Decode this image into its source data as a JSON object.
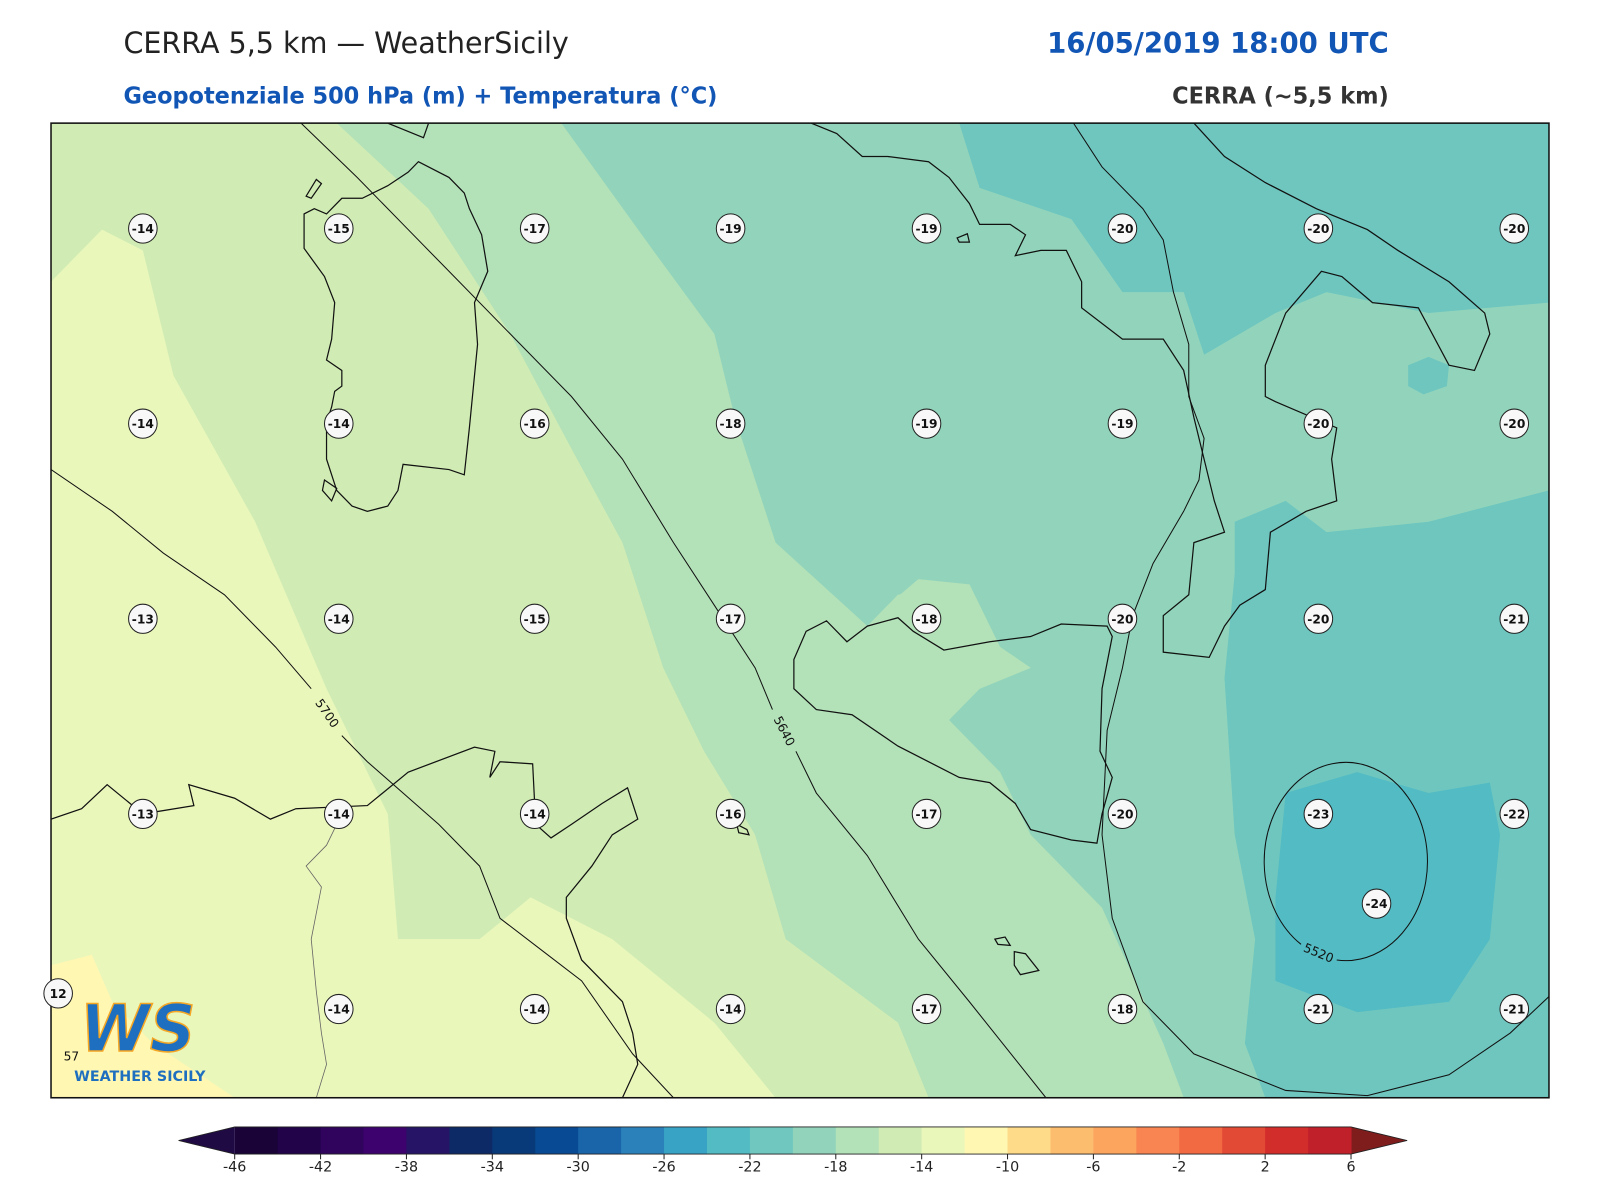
{
  "header": {
    "title": "CERRA 5,5 km — WeatherSicily",
    "datetime": "16/05/2019 18:00 UTC",
    "subtitle": "Geopotenziale 500 hPa (m) + Temperatura (°C)",
    "model": "CERRA (~5,5 km)"
  },
  "map": {
    "temperature_rows": [
      [
        -14,
        -15,
        -17,
        -19,
        -19,
        -20,
        -20,
        -20
      ],
      [
        -14,
        -14,
        -16,
        -18,
        -19,
        -19,
        -20,
        -20
      ],
      [
        -13,
        -14,
        -15,
        -17,
        -18,
        -20,
        -20,
        -21
      ],
      [
        -13,
        -14,
        -14,
        -16,
        -17,
        -20,
        -23,
        -22
      ],
      [
        null,
        -14,
        -14,
        -14,
        -17,
        -18,
        -21,
        -21
      ]
    ],
    "extra_points": [
      -24,
      12
    ],
    "contour_labels": [
      5700,
      5640,
      5520,
      57
    ]
  },
  "logo": {
    "mark": "WS",
    "name": "WEATHER SICILY"
  },
  "colorbar": {
    "ticks": [
      -46,
      -42,
      -38,
      -34,
      -30,
      -26,
      -22,
      -18,
      -14,
      -10,
      -6,
      -2,
      2,
      6
    ],
    "colors": [
      "#1a0336",
      "#22034a",
      "#30035c",
      "#3e026e",
      "#261466",
      "#0e2a66",
      "#083a7a",
      "#084a93",
      "#1a65aa",
      "#2b82bb",
      "#38a3c5",
      "#52bbc3",
      "#6fc7bf",
      "#92d4bb",
      "#b3e1b8",
      "#d0ecb4",
      "#eaf7bb",
      "#fff7b2",
      "#fddb88",
      "#fdbd6f",
      "#fca55f",
      "#f98552",
      "#f16a42",
      "#e34a36",
      "#d32d2b",
      "#c0202a"
    ],
    "extend_colors": [
      "#1f0a44",
      "#7f1d1d"
    ]
  }
}
